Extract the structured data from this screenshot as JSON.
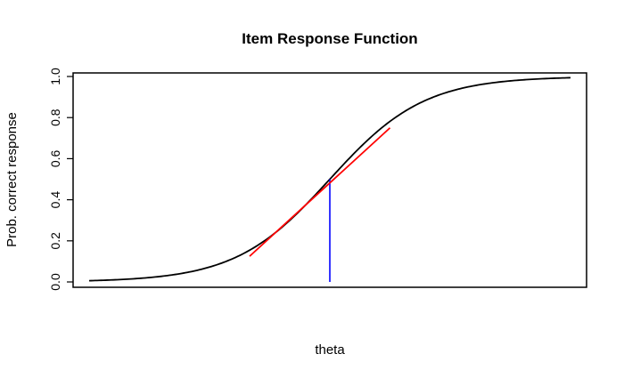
{
  "chart_data": {
    "type": "line",
    "title": "Item Response Function",
    "xlabel": "theta",
    "ylabel": "Prob. correct response",
    "xlim": [
      -3.2,
      3.2
    ],
    "ylim": [
      0,
      1
    ],
    "xaxis_shown": false,
    "y_ticks": [
      "0.0",
      "0.2",
      "0.4",
      "0.6",
      "0.8",
      "1.0"
    ],
    "grid": false,
    "legend": "none",
    "curve": {
      "function": "logistic",
      "item_location": 0,
      "slope": 1.7,
      "x_from": -3,
      "x_to": 3,
      "color": "#000000"
    },
    "tangent": {
      "x": [
        -1,
        0.75
      ],
      "y": [
        0.125,
        0.75
      ],
      "color": "#ff0000"
    },
    "location_marker": {
      "x": 0,
      "y": [
        0,
        0.5
      ],
      "color": "#0000ff"
    }
  }
}
